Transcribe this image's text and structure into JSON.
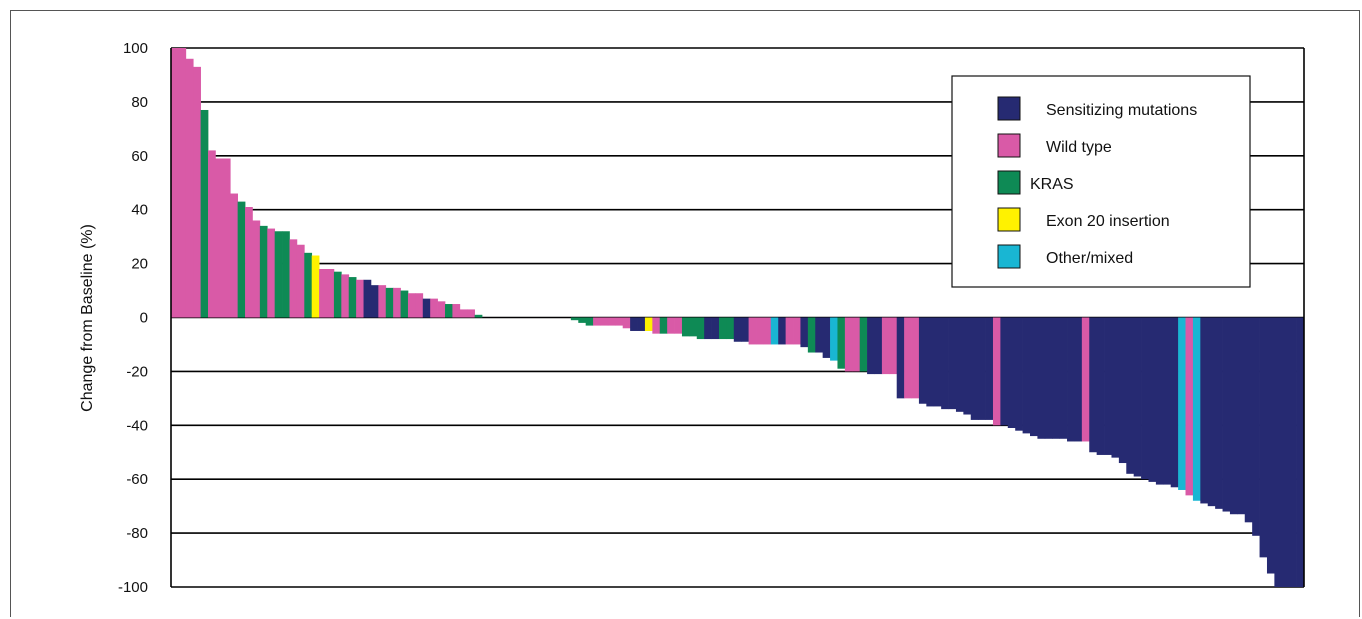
{
  "chart_data": {
    "type": "bar",
    "title": "",
    "xlabel": "",
    "ylabel": "Change from Baseline (%)",
    "ylim": [
      -100,
      100
    ],
    "yticks": [
      100,
      80,
      60,
      40,
      20,
      0,
      -20,
      -40,
      -60,
      -80,
      -100
    ],
    "grid": true,
    "legend_position": "top-right",
    "colors": {
      "sensitizing": "#262a72",
      "wild": "#d95aa7",
      "kras": "#0e8a55",
      "exon20": "#fff200",
      "other": "#19b6d3"
    },
    "legend": [
      {
        "key": "sensitizing",
        "label": "Sensitizing mutations"
      },
      {
        "key": "wild",
        "label": "Wild type"
      },
      {
        "key": "kras",
        "label": "KRAS"
      },
      {
        "key": "exon20",
        "label": "Exon 20 insertion"
      },
      {
        "key": "other",
        "label": "Other/mixed"
      }
    ],
    "bars": [
      {
        "value": 100,
        "cat": "wild"
      },
      {
        "value": 100,
        "cat": "wild"
      },
      {
        "value": 96,
        "cat": "wild"
      },
      {
        "value": 93,
        "cat": "wild"
      },
      {
        "value": 77,
        "cat": "kras"
      },
      {
        "value": 62,
        "cat": "wild"
      },
      {
        "value": 59,
        "cat": "wild"
      },
      {
        "value": 59,
        "cat": "wild"
      },
      {
        "value": 46,
        "cat": "wild"
      },
      {
        "value": 43,
        "cat": "kras"
      },
      {
        "value": 41,
        "cat": "wild"
      },
      {
        "value": 36,
        "cat": "wild"
      },
      {
        "value": 34,
        "cat": "kras"
      },
      {
        "value": 33,
        "cat": "wild"
      },
      {
        "value": 32,
        "cat": "kras"
      },
      {
        "value": 32,
        "cat": "kras"
      },
      {
        "value": 29,
        "cat": "wild"
      },
      {
        "value": 27,
        "cat": "wild"
      },
      {
        "value": 24,
        "cat": "kras"
      },
      {
        "value": 23,
        "cat": "exon20"
      },
      {
        "value": 18,
        "cat": "wild"
      },
      {
        "value": 18,
        "cat": "wild"
      },
      {
        "value": 17,
        "cat": "kras"
      },
      {
        "value": 16,
        "cat": "wild"
      },
      {
        "value": 15,
        "cat": "kras"
      },
      {
        "value": 14,
        "cat": "wild"
      },
      {
        "value": 14,
        "cat": "sensitizing"
      },
      {
        "value": 12,
        "cat": "sensitizing"
      },
      {
        "value": 12,
        "cat": "wild"
      },
      {
        "value": 11,
        "cat": "kras"
      },
      {
        "value": 11,
        "cat": "wild"
      },
      {
        "value": 10,
        "cat": "kras"
      },
      {
        "value": 9,
        "cat": "wild"
      },
      {
        "value": 9,
        "cat": "wild"
      },
      {
        "value": 7,
        "cat": "sensitizing"
      },
      {
        "value": 7,
        "cat": "wild"
      },
      {
        "value": 6,
        "cat": "wild"
      },
      {
        "value": 5,
        "cat": "kras"
      },
      {
        "value": 5,
        "cat": "wild"
      },
      {
        "value": 3,
        "cat": "wild"
      },
      {
        "value": 3,
        "cat": "wild"
      },
      {
        "value": 1,
        "cat": "kras"
      },
      {
        "value": 0,
        "cat": "wild"
      },
      {
        "value": 0,
        "cat": "wild"
      },
      {
        "value": 0,
        "cat": "wild"
      },
      {
        "value": 0,
        "cat": "wild"
      },
      {
        "value": 0,
        "cat": "wild"
      },
      {
        "value": 0,
        "cat": "wild"
      },
      {
        "value": 0,
        "cat": "wild"
      },
      {
        "value": 0,
        "cat": "wild"
      },
      {
        "value": 0,
        "cat": "wild"
      },
      {
        "value": 0,
        "cat": "wild"
      },
      {
        "value": 0,
        "cat": "wild"
      },
      {
        "value": 0,
        "cat": "wild"
      },
      {
        "value": -1,
        "cat": "kras"
      },
      {
        "value": -2,
        "cat": "kras"
      },
      {
        "value": -3,
        "cat": "kras"
      },
      {
        "value": -3,
        "cat": "wild"
      },
      {
        "value": -3,
        "cat": "wild"
      },
      {
        "value": -3,
        "cat": "wild"
      },
      {
        "value": -3,
        "cat": "wild"
      },
      {
        "value": -4,
        "cat": "wild"
      },
      {
        "value": -5,
        "cat": "sensitizing"
      },
      {
        "value": -5,
        "cat": "sensitizing"
      },
      {
        "value": -5,
        "cat": "exon20"
      },
      {
        "value": -6,
        "cat": "wild"
      },
      {
        "value": -6,
        "cat": "kras"
      },
      {
        "value": -6,
        "cat": "wild"
      },
      {
        "value": -6,
        "cat": "wild"
      },
      {
        "value": -7,
        "cat": "kras"
      },
      {
        "value": -7,
        "cat": "kras"
      },
      {
        "value": -8,
        "cat": "kras"
      },
      {
        "value": -8,
        "cat": "sensitizing"
      },
      {
        "value": -8,
        "cat": "sensitizing"
      },
      {
        "value": -8,
        "cat": "kras"
      },
      {
        "value": -8,
        "cat": "kras"
      },
      {
        "value": -9,
        "cat": "sensitizing"
      },
      {
        "value": -9,
        "cat": "sensitizing"
      },
      {
        "value": -10,
        "cat": "wild"
      },
      {
        "value": -10,
        "cat": "wild"
      },
      {
        "value": -10,
        "cat": "wild"
      },
      {
        "value": -10,
        "cat": "other"
      },
      {
        "value": -10,
        "cat": "sensitizing"
      },
      {
        "value": -10,
        "cat": "wild"
      },
      {
        "value": -10,
        "cat": "wild"
      },
      {
        "value": -11,
        "cat": "sensitizing"
      },
      {
        "value": -13,
        "cat": "kras"
      },
      {
        "value": -13,
        "cat": "sensitizing"
      },
      {
        "value": -15,
        "cat": "sensitizing"
      },
      {
        "value": -16,
        "cat": "other"
      },
      {
        "value": -19,
        "cat": "kras"
      },
      {
        "value": -20,
        "cat": "wild"
      },
      {
        "value": -20,
        "cat": "wild"
      },
      {
        "value": -20,
        "cat": "kras"
      },
      {
        "value": -21,
        "cat": "sensitizing"
      },
      {
        "value": -21,
        "cat": "sensitizing"
      },
      {
        "value": -21,
        "cat": "wild"
      },
      {
        "value": -21,
        "cat": "wild"
      },
      {
        "value": -30,
        "cat": "sensitizing"
      },
      {
        "value": -30,
        "cat": "wild"
      },
      {
        "value": -30,
        "cat": "wild"
      },
      {
        "value": -32,
        "cat": "sensitizing"
      },
      {
        "value": -33,
        "cat": "sensitizing"
      },
      {
        "value": -33,
        "cat": "sensitizing"
      },
      {
        "value": -34,
        "cat": "sensitizing"
      },
      {
        "value": -34,
        "cat": "sensitizing"
      },
      {
        "value": -35,
        "cat": "sensitizing"
      },
      {
        "value": -36,
        "cat": "sensitizing"
      },
      {
        "value": -38,
        "cat": "sensitizing"
      },
      {
        "value": -38,
        "cat": "sensitizing"
      },
      {
        "value": -38,
        "cat": "sensitizing"
      },
      {
        "value": -40,
        "cat": "wild"
      },
      {
        "value": -40,
        "cat": "sensitizing"
      },
      {
        "value": -41,
        "cat": "sensitizing"
      },
      {
        "value": -42,
        "cat": "sensitizing"
      },
      {
        "value": -43,
        "cat": "sensitizing"
      },
      {
        "value": -44,
        "cat": "sensitizing"
      },
      {
        "value": -45,
        "cat": "sensitizing"
      },
      {
        "value": -45,
        "cat": "sensitizing"
      },
      {
        "value": -45,
        "cat": "sensitizing"
      },
      {
        "value": -45,
        "cat": "sensitizing"
      },
      {
        "value": -46,
        "cat": "sensitizing"
      },
      {
        "value": -46,
        "cat": "sensitizing"
      },
      {
        "value": -46,
        "cat": "wild"
      },
      {
        "value": -50,
        "cat": "sensitizing"
      },
      {
        "value": -51,
        "cat": "sensitizing"
      },
      {
        "value": -51,
        "cat": "sensitizing"
      },
      {
        "value": -52,
        "cat": "sensitizing"
      },
      {
        "value": -54,
        "cat": "sensitizing"
      },
      {
        "value": -58,
        "cat": "sensitizing"
      },
      {
        "value": -59,
        "cat": "sensitizing"
      },
      {
        "value": -60,
        "cat": "sensitizing"
      },
      {
        "value": -61,
        "cat": "sensitizing"
      },
      {
        "value": -62,
        "cat": "sensitizing"
      },
      {
        "value": -62,
        "cat": "sensitizing"
      },
      {
        "value": -63,
        "cat": "sensitizing"
      },
      {
        "value": -64,
        "cat": "other"
      },
      {
        "value": -66,
        "cat": "wild"
      },
      {
        "value": -68,
        "cat": "other"
      },
      {
        "value": -69,
        "cat": "sensitizing"
      },
      {
        "value": -70,
        "cat": "sensitizing"
      },
      {
        "value": -71,
        "cat": "sensitizing"
      },
      {
        "value": -72,
        "cat": "sensitizing"
      },
      {
        "value": -73,
        "cat": "sensitizing"
      },
      {
        "value": -73,
        "cat": "sensitizing"
      },
      {
        "value": -76,
        "cat": "sensitizing"
      },
      {
        "value": -81,
        "cat": "sensitizing"
      },
      {
        "value": -89,
        "cat": "sensitizing"
      },
      {
        "value": -95,
        "cat": "sensitizing"
      },
      {
        "value": -100,
        "cat": "sensitizing"
      },
      {
        "value": -100,
        "cat": "sensitizing"
      },
      {
        "value": -100,
        "cat": "sensitizing"
      },
      {
        "value": -100,
        "cat": "sensitizing"
      }
    ]
  }
}
